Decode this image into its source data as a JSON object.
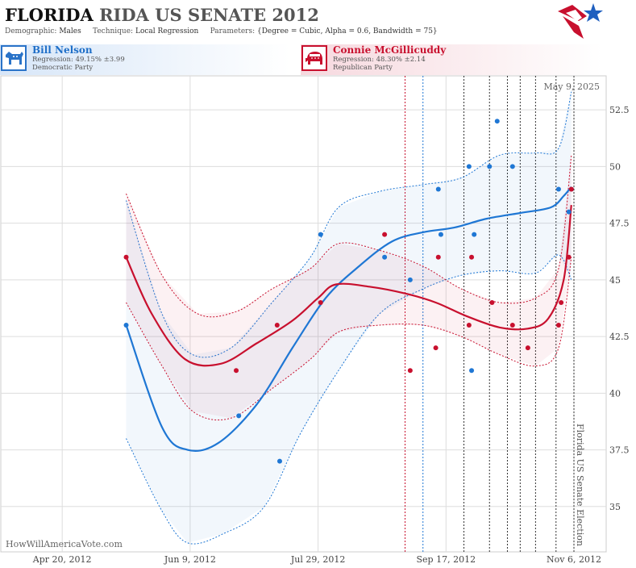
{
  "header": {
    "state": "FLORIDA",
    "race": "RIDA US SENATE 2012",
    "demographic_label": "Demographic:",
    "demographic": "Males",
    "technique_label": "Technique:",
    "technique": "Local Regression",
    "parameters_label": "Parameters:",
    "parameters": "{Degree = Cubic, Alpha = 0.6, Bandwidth = 75}"
  },
  "candidates": {
    "dem": {
      "name": "Bill Nelson",
      "regression": "Regression: 49.15% ±3.99",
      "party": "Democratic Party",
      "icon": "donkey-icon"
    },
    "rep": {
      "name": "Connie McGillicuddy",
      "regression": "Regression: 48.30% ±2.14",
      "party": "Republican Party",
      "icon": "elephant-icon"
    }
  },
  "date_stamp": "May 9, 2025",
  "watermark": "HowWillAmericaVote.com",
  "colors": {
    "dem": "#1f77d4",
    "rep": "#c8102e",
    "grid": "#dddddd"
  },
  "chart_data": {
    "type": "scatter",
    "x_axis": {
      "ticks": [
        "2012-04-20",
        "2012-06-09",
        "2012-07-29",
        "2012-09-17",
        "2012-11-06"
      ],
      "tick_labels": [
        "Apr 20, 2012",
        "Jun 9, 2012",
        "Jul 29, 2012",
        "Sep 17, 2012",
        "Nov 6, 2012"
      ],
      "range": [
        "2012-03-27",
        "2012-11-06"
      ]
    },
    "y_axis": {
      "ticks": [
        35,
        37.5,
        40,
        42.5,
        45,
        47.5,
        50,
        52.5
      ],
      "tick_labels": [
        "35",
        "37.5",
        "40",
        "42.5",
        "45",
        "47.5",
        "50",
        "52.5"
      ],
      "range": [
        33,
        54
      ]
    },
    "grid": true,
    "event": {
      "date": "2012-11-06",
      "label": "Florida US Senate Election"
    },
    "poll_lines_dem": [
      "2012-09-08"
    ],
    "poll_lines_rep": [
      "2012-09-01"
    ],
    "poll_lines_other": [
      "2012-09-24",
      "2012-10-04",
      "2012-10-11",
      "2012-10-16",
      "2012-10-22",
      "2012-10-30"
    ],
    "series": [
      {
        "name": "Bill Nelson",
        "points": [
          {
            "x": "2012-05-15",
            "y": 43
          },
          {
            "x": "2012-06-28",
            "y": 39
          },
          {
            "x": "2012-07-14",
            "y": 37
          },
          {
            "x": "2012-07-30",
            "y": 47
          },
          {
            "x": "2012-08-24",
            "y": 46
          },
          {
            "x": "2012-09-03",
            "y": 45
          },
          {
            "x": "2012-09-14",
            "y": 49
          },
          {
            "x": "2012-09-15",
            "y": 47
          },
          {
            "x": "2012-09-26",
            "y": 50
          },
          {
            "x": "2012-09-27",
            "y": 41
          },
          {
            "x": "2012-09-28",
            "y": 47
          },
          {
            "x": "2012-10-04",
            "y": 50
          },
          {
            "x": "2012-10-07",
            "y": 52
          },
          {
            "x": "2012-10-13",
            "y": 50
          },
          {
            "x": "2012-10-31",
            "y": 49
          },
          {
            "x": "2012-11-04",
            "y": 48
          },
          {
            "x": "2012-11-05",
            "y": 49
          }
        ],
        "trend": [
          {
            "x": "2012-05-15",
            "y": 43
          },
          {
            "x": "2012-05-29",
            "y": 38.5
          },
          {
            "x": "2012-06-08",
            "y": 37.5
          },
          {
            "x": "2012-06-20",
            "y": 37.8
          },
          {
            "x": "2012-07-05",
            "y": 39.5
          },
          {
            "x": "2012-07-19",
            "y": 42
          },
          {
            "x": "2012-08-01",
            "y": 44.2
          },
          {
            "x": "2012-08-14",
            "y": 45.6
          },
          {
            "x": "2012-08-27",
            "y": 46.7
          },
          {
            "x": "2012-09-08",
            "y": 47.1
          },
          {
            "x": "2012-09-20",
            "y": 47.3
          },
          {
            "x": "2012-10-03",
            "y": 47.7
          },
          {
            "x": "2012-10-16",
            "y": 47.95
          },
          {
            "x": "2012-10-28",
            "y": 48.2
          },
          {
            "x": "2012-11-02",
            "y": 48.7
          },
          {
            "x": "2012-11-05",
            "y": 49.1
          }
        ],
        "upper": [
          {
            "x": "2012-05-15",
            "y": 48.5
          },
          {
            "x": "2012-05-29",
            "y": 43.5
          },
          {
            "x": "2012-06-10",
            "y": 41.7
          },
          {
            "x": "2012-06-25",
            "y": 42
          },
          {
            "x": "2012-07-11",
            "y": 44
          },
          {
            "x": "2012-07-26",
            "y": 46
          },
          {
            "x": "2012-08-06",
            "y": 48.2
          },
          {
            "x": "2012-08-22",
            "y": 48.9
          },
          {
            "x": "2012-09-08",
            "y": 49.2
          },
          {
            "x": "2012-09-23",
            "y": 49.5
          },
          {
            "x": "2012-10-08",
            "y": 50.5
          },
          {
            "x": "2012-10-22",
            "y": 50.6
          },
          {
            "x": "2012-10-31",
            "y": 50.8
          },
          {
            "x": "2012-11-05",
            "y": 53.3
          }
        ],
        "lower": [
          {
            "x": "2012-05-15",
            "y": 38
          },
          {
            "x": "2012-05-29",
            "y": 34.8
          },
          {
            "x": "2012-06-08",
            "y": 33.4
          },
          {
            "x": "2012-06-22",
            "y": 33.8
          },
          {
            "x": "2012-07-08",
            "y": 35
          },
          {
            "x": "2012-07-22",
            "y": 38.2
          },
          {
            "x": "2012-08-06",
            "y": 41
          },
          {
            "x": "2012-08-22",
            "y": 43.5
          },
          {
            "x": "2012-09-08",
            "y": 44.6
          },
          {
            "x": "2012-09-23",
            "y": 45.2
          },
          {
            "x": "2012-10-08",
            "y": 45.4
          },
          {
            "x": "2012-10-22",
            "y": 45.3
          },
          {
            "x": "2012-10-31",
            "y": 46.1
          },
          {
            "x": "2012-11-05",
            "y": 45
          }
        ]
      },
      {
        "name": "Connie McGillicuddy",
        "points": [
          {
            "x": "2012-05-15",
            "y": 46
          },
          {
            "x": "2012-06-27",
            "y": 41
          },
          {
            "x": "2012-07-13",
            "y": 43
          },
          {
            "x": "2012-07-30",
            "y": 44
          },
          {
            "x": "2012-08-24",
            "y": 47
          },
          {
            "x": "2012-09-03",
            "y": 41
          },
          {
            "x": "2012-09-13",
            "y": 42
          },
          {
            "x": "2012-09-14",
            "y": 46
          },
          {
            "x": "2012-09-26",
            "y": 43
          },
          {
            "x": "2012-09-27",
            "y": 46
          },
          {
            "x": "2012-10-05",
            "y": 44
          },
          {
            "x": "2012-10-13",
            "y": 43
          },
          {
            "x": "2012-10-19",
            "y": 42
          },
          {
            "x": "2012-10-31",
            "y": 43
          },
          {
            "x": "2012-11-01",
            "y": 44
          },
          {
            "x": "2012-11-04",
            "y": 46
          },
          {
            "x": "2012-11-05",
            "y": 49
          }
        ],
        "trend": [
          {
            "x": "2012-05-15",
            "y": 46
          },
          {
            "x": "2012-05-25",
            "y": 43.5
          },
          {
            "x": "2012-06-07",
            "y": 41.5
          },
          {
            "x": "2012-06-21",
            "y": 41.3
          },
          {
            "x": "2012-07-05",
            "y": 42.2
          },
          {
            "x": "2012-07-19",
            "y": 43.2
          },
          {
            "x": "2012-07-29",
            "y": 44.2
          },
          {
            "x": "2012-08-05",
            "y": 44.8
          },
          {
            "x": "2012-08-18",
            "y": 44.7
          },
          {
            "x": "2012-09-01",
            "y": 44.4
          },
          {
            "x": "2012-09-13",
            "y": 44
          },
          {
            "x": "2012-09-25",
            "y": 43.4
          },
          {
            "x": "2012-10-08",
            "y": 42.9
          },
          {
            "x": "2012-10-19",
            "y": 42.85
          },
          {
            "x": "2012-10-27",
            "y": 43.3
          },
          {
            "x": "2012-11-02",
            "y": 45
          },
          {
            "x": "2012-11-05",
            "y": 48.3
          }
        ],
        "upper": [
          {
            "x": "2012-05-15",
            "y": 48.8
          },
          {
            "x": "2012-05-29",
            "y": 45.2
          },
          {
            "x": "2012-06-12",
            "y": 43.5
          },
          {
            "x": "2012-06-27",
            "y": 43.6
          },
          {
            "x": "2012-07-11",
            "y": 44.6
          },
          {
            "x": "2012-07-26",
            "y": 45.5
          },
          {
            "x": "2012-08-06",
            "y": 46.6
          },
          {
            "x": "2012-08-22",
            "y": 46.3
          },
          {
            "x": "2012-09-08",
            "y": 45.6
          },
          {
            "x": "2012-09-23",
            "y": 44.6
          },
          {
            "x": "2012-10-08",
            "y": 44
          },
          {
            "x": "2012-10-22",
            "y": 44.2
          },
          {
            "x": "2012-10-31",
            "y": 45.5
          },
          {
            "x": "2012-11-05",
            "y": 50.5
          }
        ],
        "lower": [
          {
            "x": "2012-05-15",
            "y": 44
          },
          {
            "x": "2012-05-29",
            "y": 41.2
          },
          {
            "x": "2012-06-10",
            "y": 39.2
          },
          {
            "x": "2012-06-25",
            "y": 38.9
          },
          {
            "x": "2012-07-11",
            "y": 40.2
          },
          {
            "x": "2012-07-26",
            "y": 41.5
          },
          {
            "x": "2012-08-06",
            "y": 42.7
          },
          {
            "x": "2012-08-22",
            "y": 43
          },
          {
            "x": "2012-09-08",
            "y": 43
          },
          {
            "x": "2012-09-23",
            "y": 42.5
          },
          {
            "x": "2012-10-08",
            "y": 41.7
          },
          {
            "x": "2012-10-22",
            "y": 41.2
          },
          {
            "x": "2012-10-31",
            "y": 42
          },
          {
            "x": "2012-11-05",
            "y": 46
          }
        ]
      }
    ]
  }
}
